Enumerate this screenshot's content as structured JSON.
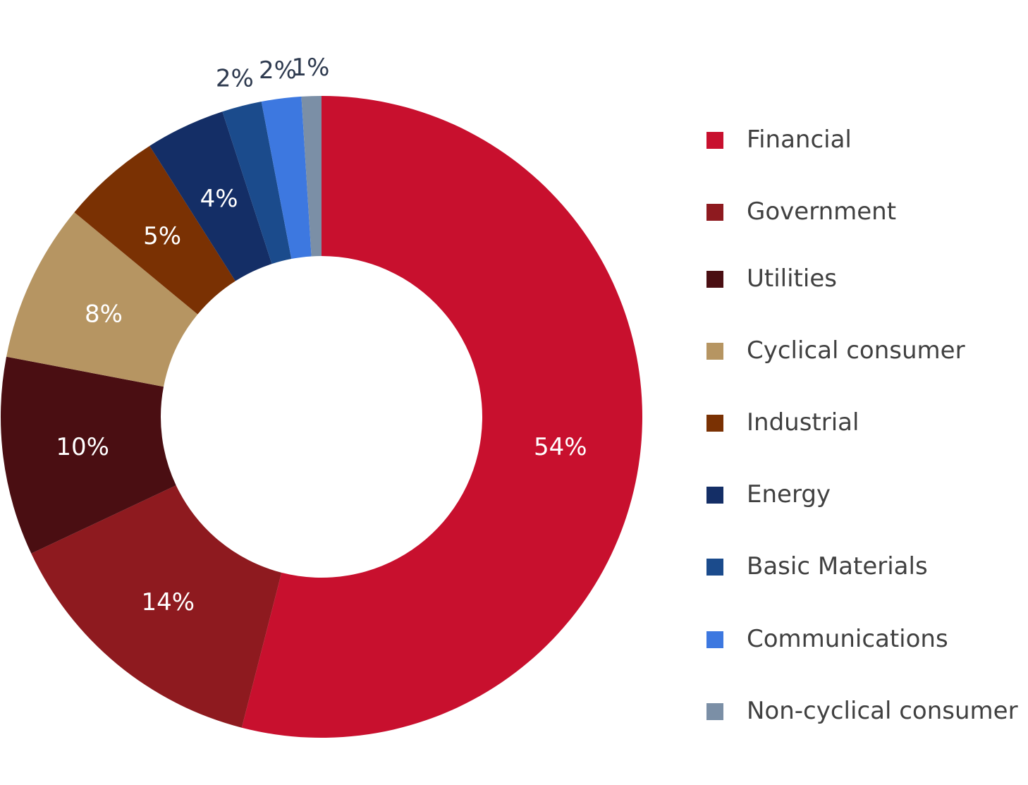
{
  "chart_data": {
    "type": "pie",
    "variant": "donut",
    "legend_position": "right",
    "slices": [
      {
        "label": "Financial",
        "value": 54,
        "display": "54%",
        "color": "#C8102E",
        "label_color": "#ffffff"
      },
      {
        "label": "Government",
        "value": 14,
        "display": "14%",
        "color": "#8E1A1F",
        "label_color": "#ffffff"
      },
      {
        "label": "Utilities",
        "value": 10,
        "display": "10%",
        "color": "#4A0E12",
        "label_color": "#ffffff"
      },
      {
        "label": "Cyclical consumer",
        "value": 8,
        "display": "8%",
        "color": "#B69562",
        "label_color": "#ffffff"
      },
      {
        "label": "Industrial",
        "value": 5,
        "display": "5%",
        "color": "#7A3103",
        "label_color": "#ffffff"
      },
      {
        "label": "Energy",
        "value": 4,
        "display": "4%",
        "color": "#142E66",
        "label_color": "#ffffff"
      },
      {
        "label": "Basic Materials",
        "value": 2,
        "display": "2%",
        "color": "#1B4B8C",
        "label_color": "#2E3A4F"
      },
      {
        "label": "Communications",
        "value": 2,
        "display": "2%",
        "color": "#3D78E0",
        "label_color": "#2E3A4F"
      },
      {
        "label": "Non-cyclical consumer",
        "value": 1,
        "display": "1%",
        "color": "#7B8FA6",
        "label_color": "#2E3A4F"
      }
    ]
  }
}
